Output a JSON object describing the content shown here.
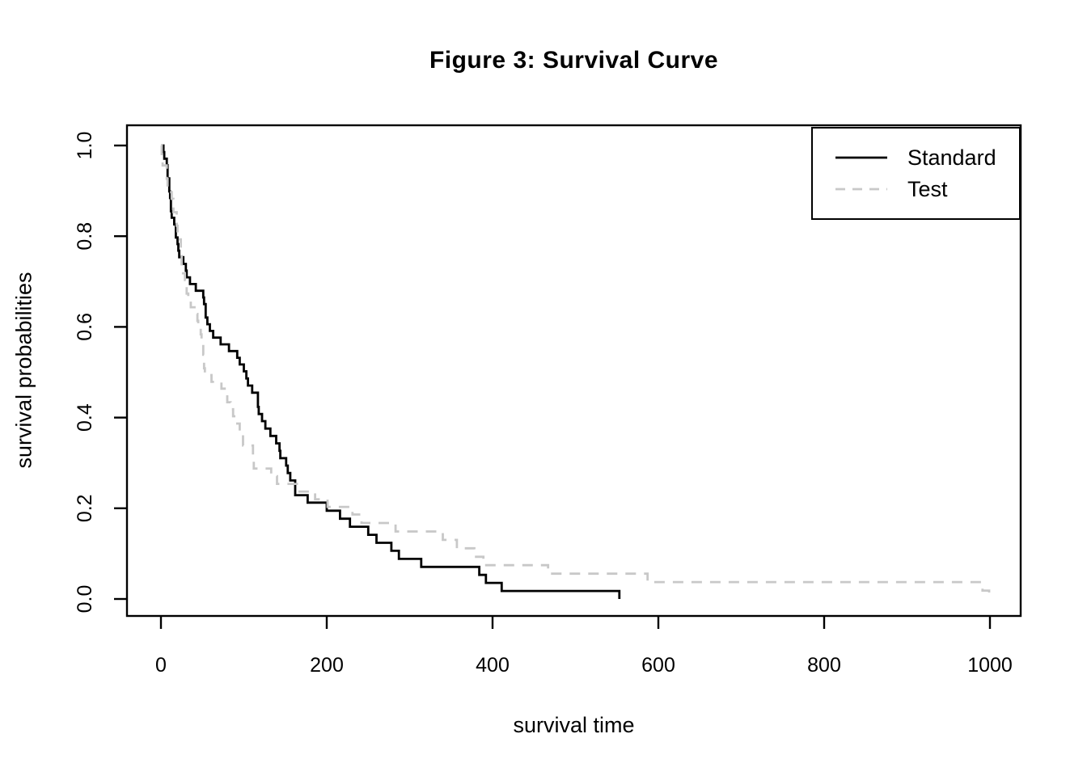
{
  "figure": {
    "title": "Figure 3: Survival Curve",
    "xlabel": "survival time",
    "ylabel": "survival probabilities"
  },
  "legend": {
    "position": "topright",
    "items": [
      {
        "label": "Standard",
        "line": "solid",
        "color": "#000000"
      },
      {
        "label": "Test",
        "line": "dashed",
        "color": "#c8c8c8"
      }
    ]
  },
  "chart_data": {
    "type": "line",
    "subtype": "kaplan-meier-step",
    "title": "Figure 3: Survival Curve",
    "xlabel": "survival time",
    "ylabel": "survival probabilities",
    "xlim": [
      0,
      1000
    ],
    "ylim": [
      0,
      1
    ],
    "grid": false,
    "legend_position": "topright",
    "x_tick_values": [
      0,
      200,
      400,
      600,
      800,
      1000
    ],
    "x_tick_labels": [
      "0",
      "200",
      "400",
      "600",
      "800",
      "1000"
    ],
    "y_tick_values": [
      0,
      0.2,
      0.4,
      0.6,
      0.8,
      1.0
    ],
    "y_tick_labels": [
      "0.0",
      "0.2",
      "0.4",
      "0.6",
      "0.8",
      "1.0"
    ],
    "axis_color": "#000000",
    "series": [
      {
        "name": "Standard",
        "style": "solid",
        "color": "#000000",
        "points": [
          [
            0,
            1.0
          ],
          [
            3,
            0.9855
          ],
          [
            4,
            0.971
          ],
          [
            7,
            0.9565
          ],
          [
            8,
            0.9275
          ],
          [
            10,
            0.8986
          ],
          [
            11,
            0.8841
          ],
          [
            12,
            0.8551
          ],
          [
            13,
            0.8406
          ],
          [
            16,
            0.8261
          ],
          [
            18,
            0.7971
          ],
          [
            20,
            0.7826
          ],
          [
            21,
            0.7681
          ],
          [
            22,
            0.7536
          ],
          [
            27,
            0.7388
          ],
          [
            30,
            0.724
          ],
          [
            31,
            0.7093
          ],
          [
            35,
            0.6945
          ],
          [
            42,
            0.6797
          ],
          [
            51,
            0.6649
          ],
          [
            52,
            0.6502
          ],
          [
            54,
            0.6206
          ],
          [
            56,
            0.6058
          ],
          [
            59,
            0.591
          ],
          [
            63,
            0.5763
          ],
          [
            72,
            0.5615
          ],
          [
            82,
            0.5467
          ],
          [
            92,
            0.5319
          ],
          [
            95,
            0.5172
          ],
          [
            100,
            0.502
          ],
          [
            103,
            0.4863
          ],
          [
            105,
            0.4706
          ],
          [
            110,
            0.4549
          ],
          [
            117,
            0.4235
          ],
          [
            118,
            0.4078
          ],
          [
            122,
            0.3922
          ],
          [
            126,
            0.3758
          ],
          [
            132,
            0.3595
          ],
          [
            139,
            0.3432
          ],
          [
            143,
            0.3268
          ],
          [
            144,
            0.3105
          ],
          [
            151,
            0.2941
          ],
          [
            153,
            0.2778
          ],
          [
            156,
            0.2614
          ],
          [
            162,
            0.2288
          ],
          [
            177,
            0.2124
          ],
          [
            200,
            0.1947
          ],
          [
            216,
            0.177
          ],
          [
            228,
            0.1593
          ],
          [
            250,
            0.1416
          ],
          [
            260,
            0.1239
          ],
          [
            278,
            0.1062
          ],
          [
            287,
            0.0885
          ],
          [
            314,
            0.0708
          ],
          [
            384,
            0.0531
          ],
          [
            392,
            0.0354
          ],
          [
            411,
            0.0177
          ],
          [
            553,
            0.0
          ]
        ]
      },
      {
        "name": "Test",
        "style": "dashed",
        "color": "#c8c8c8",
        "points": [
          [
            0,
            1.0
          ],
          [
            1,
            0.9706
          ],
          [
            2,
            0.9559
          ],
          [
            7,
            0.9265
          ],
          [
            8,
            0.8971
          ],
          [
            13,
            0.8824
          ],
          [
            15,
            0.8529
          ],
          [
            19,
            0.823
          ],
          [
            20,
            0.808
          ],
          [
            21,
            0.7931
          ],
          [
            24,
            0.7631
          ],
          [
            25,
            0.7182
          ],
          [
            29,
            0.7033
          ],
          [
            30,
            0.6883
          ],
          [
            31,
            0.6734
          ],
          [
            33,
            0.6584
          ],
          [
            36,
            0.6434
          ],
          [
            43,
            0.6285
          ],
          [
            44,
            0.6135
          ],
          [
            45,
            0.5985
          ],
          [
            48,
            0.5836
          ],
          [
            49,
            0.5686
          ],
          [
            51,
            0.5387
          ],
          [
            52,
            0.5088
          ],
          [
            53,
            0.4938
          ],
          [
            61,
            0.4788
          ],
          [
            73,
            0.4639
          ],
          [
            80,
            0.4339
          ],
          [
            84,
            0.4184
          ],
          [
            87,
            0.4029
          ],
          [
            90,
            0.3868
          ],
          [
            95,
            0.3707
          ],
          [
            99,
            0.3385
          ],
          [
            111,
            0.3046
          ],
          [
            112,
            0.2877
          ],
          [
            133,
            0.2708
          ],
          [
            140,
            0.2538
          ],
          [
            164,
            0.2369
          ],
          [
            186,
            0.22
          ],
          [
            201,
            0.2031
          ],
          [
            231,
            0.1862
          ],
          [
            242,
            0.1676
          ],
          [
            283,
            0.1489
          ],
          [
            340,
            0.1303
          ],
          [
            357,
            0.1117
          ],
          [
            378,
            0.0931
          ],
          [
            389,
            0.0745
          ],
          [
            467,
            0.0558
          ],
          [
            587,
            0.0372
          ],
          [
            991,
            0.0186
          ],
          [
            999,
            0.0
          ]
        ]
      }
    ]
  }
}
